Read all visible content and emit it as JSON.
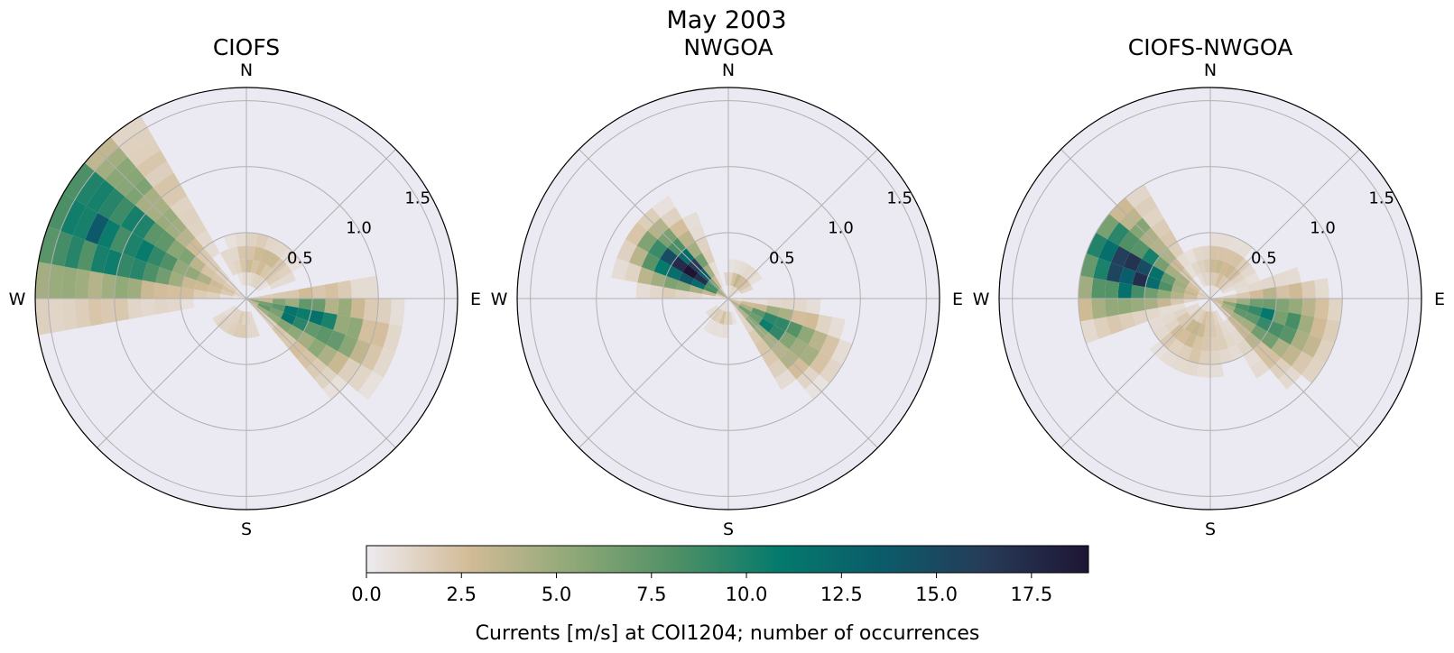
{
  "figure": {
    "title": "May 2003"
  },
  "chart_data": [
    {
      "type": "polar-histogram",
      "title": "CIOFS",
      "direction_labels": [
        "N",
        "E",
        "S",
        "W"
      ],
      "radial_ticks": [
        "0.5",
        "1.0",
        "1.5"
      ],
      "rlim": [
        0,
        1.6
      ],
      "sector_deg": 10,
      "bin_width": 0.1,
      "lobes": [
        {
          "center_deg": 295,
          "spread_deg": 26,
          "rmin": 0.05,
          "rmax": 1.6,
          "peak_r": 1.15,
          "peak": 11.5
        },
        {
          "center_deg": 110,
          "spread_deg": 24,
          "rmin": 0.05,
          "rmax": 1.15,
          "peak_r": 0.45,
          "peak": 10.5
        },
        {
          "center_deg": 20,
          "spread_deg": 50,
          "rmin": 0.05,
          "rmax": 0.55,
          "peak_r": 0.3,
          "peak": 3.0
        },
        {
          "center_deg": 200,
          "spread_deg": 50,
          "rmin": 0.05,
          "rmax": 0.4,
          "peak_r": 0.2,
          "peak": 2.0
        }
      ]
    },
    {
      "type": "polar-histogram",
      "title": "NWGOA",
      "direction_labels": [
        "N",
        "E",
        "S",
        "W"
      ],
      "radial_ticks": [
        "0.5",
        "1.0",
        "1.5"
      ],
      "rlim": [
        0,
        1.6
      ],
      "sector_deg": 10,
      "bin_width": 0.1,
      "lobes": [
        {
          "center_deg": 305,
          "spread_deg": 22,
          "rmin": 0.05,
          "rmax": 0.85,
          "peak_r": 0.4,
          "peak": 18.5
        },
        {
          "center_deg": 122,
          "spread_deg": 22,
          "rmin": 0.05,
          "rmax": 0.95,
          "peak_r": 0.4,
          "peak": 9.0
        },
        {
          "center_deg": 30,
          "spread_deg": 40,
          "rmin": 0.05,
          "rmax": 0.3,
          "peak_r": 0.15,
          "peak": 3.0
        },
        {
          "center_deg": 200,
          "spread_deg": 40,
          "rmin": 0.05,
          "rmax": 0.3,
          "peak_r": 0.15,
          "peak": 2.0
        }
      ]
    },
    {
      "type": "polar-histogram",
      "title": "CIOFS-NWGOA",
      "direction_labels": [
        "N",
        "E",
        "S",
        "W"
      ],
      "radial_ticks": [
        "0.5",
        "1.0",
        "1.5"
      ],
      "rlim": [
        0,
        1.6
      ],
      "sector_deg": 10,
      "bin_width": 0.1,
      "lobes": [
        {
          "center_deg": 290,
          "spread_deg": 28,
          "rmin": 0.05,
          "rmax": 1.0,
          "peak_r": 0.65,
          "peak": 15.5
        },
        {
          "center_deg": 110,
          "spread_deg": 28,
          "rmin": 0.05,
          "rmax": 1.0,
          "peak_r": 0.45,
          "peak": 9.5
        },
        {
          "center_deg": 20,
          "spread_deg": 50,
          "rmin": 0.05,
          "rmax": 0.5,
          "peak_r": 0.25,
          "peak": 3.0
        },
        {
          "center_deg": 200,
          "spread_deg": 55,
          "rmin": 0.05,
          "rmax": 0.65,
          "peak_r": 0.3,
          "peak": 3.0
        }
      ]
    }
  ],
  "colorbar": {
    "label": "Currents [m/s] at COI1204; number of occurrences",
    "range": [
      0,
      19
    ],
    "ticks": [
      "0.0",
      "2.5",
      "5.0",
      "7.5",
      "10.0",
      "12.5",
      "15.0",
      "17.5"
    ],
    "colormap": [
      "#edebf0",
      "#d2bb97",
      "#8fa877",
      "#4f9066",
      "#047a6c",
      "#0b5b6a",
      "#263b58",
      "#1e1534"
    ]
  }
}
